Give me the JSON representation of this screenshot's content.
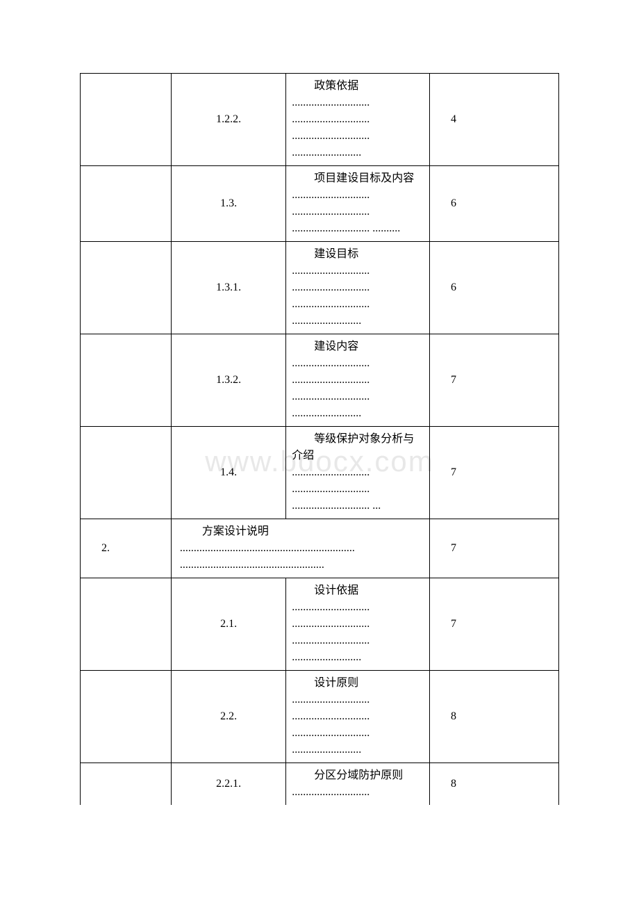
{
  "watermark": "www.bdocx.com",
  "table": {
    "border_color": "#000000",
    "background_color": "#ffffff",
    "text_color": "#000000",
    "font_size": 16,
    "columns": [
      {
        "width": "19%"
      },
      {
        "width": "24%"
      },
      {
        "width": "30%"
      },
      {
        "width": "27%"
      }
    ],
    "rows": [
      {
        "col1": "",
        "col2": "1.2.2.",
        "col3_title": "政策依据",
        "col3_dots": "............................ ............................ ............................ .........................",
        "col4": "4",
        "merged": false
      },
      {
        "col1": "",
        "col2": "1.3.",
        "col3_title": "项目建设目标及内容",
        "col3_dots": "............................ ............................ ............................ ..........",
        "col4": "6",
        "merged": false
      },
      {
        "col1": "",
        "col2": "1.3.1.",
        "col3_title": "建设目标",
        "col3_dots": "............................ ............................ ............................ .........................",
        "col4": "6",
        "merged": false
      },
      {
        "col1": "",
        "col2": "1.3.2.",
        "col3_title": "建设内容",
        "col3_dots": "............................ ............................ ............................ .........................",
        "col4": "7",
        "merged": false
      },
      {
        "col1": "",
        "col2": "1.4.",
        "col3_title": "等级保护对象分析与介绍",
        "col3_dots": "............................ ............................ ............................ ...",
        "col4": "7",
        "merged": false
      },
      {
        "col1": "2.",
        "col2_title": "方案设计说明",
        "col2_dots": "............................................................... ....................................................",
        "col4": "7",
        "merged": true
      },
      {
        "col1": "",
        "col2": "2.1.",
        "col3_title": "设计依据",
        "col3_dots": "............................ ............................ ............................ .........................",
        "col4": "7",
        "merged": false
      },
      {
        "col1": "",
        "col2": "2.2.",
        "col3_title": "设计原则",
        "col3_dots": "............................ ............................ ............................ .........................",
        "col4": "8",
        "merged": false
      },
      {
        "col1": "",
        "col2": "2.2.1.",
        "col3_title": "分区分域防护原则",
        "col3_dots": "............................",
        "col4": "8",
        "merged": false,
        "partial": true
      }
    ]
  }
}
